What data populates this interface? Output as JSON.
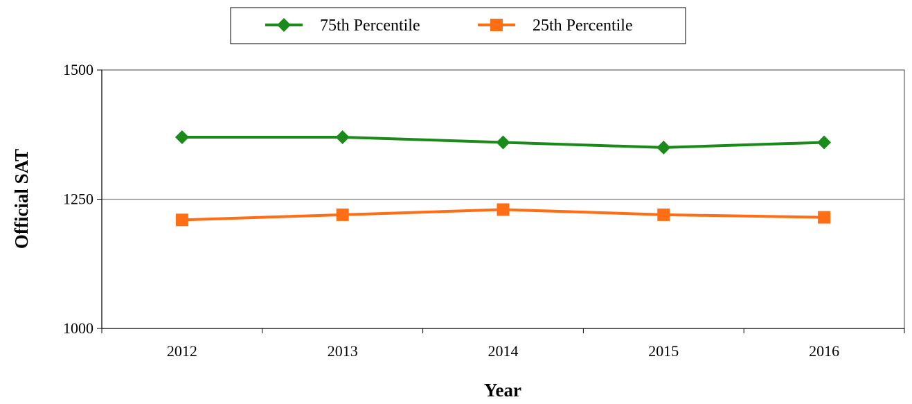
{
  "chart_data": {
    "type": "line",
    "title": "",
    "xlabel": "Year",
    "ylabel": "Official SAT",
    "categories": [
      "2012",
      "2013",
      "2014",
      "2015",
      "2016"
    ],
    "ylim": [
      1000,
      1500
    ],
    "yticks": [
      "1000",
      "1250",
      "1500"
    ],
    "grid": "horizontal",
    "legend_position": "top-center",
    "series": [
      {
        "name": "75th Percentile",
        "values": [
          1370,
          1370,
          1360,
          1350,
          1360
        ],
        "color": "#1a8a1a",
        "marker": "diamond"
      },
      {
        "name": "25th Percentile",
        "values": [
          1210,
          1220,
          1230,
          1220,
          1215
        ],
        "color": "#ff6e14",
        "marker": "square"
      }
    ]
  }
}
